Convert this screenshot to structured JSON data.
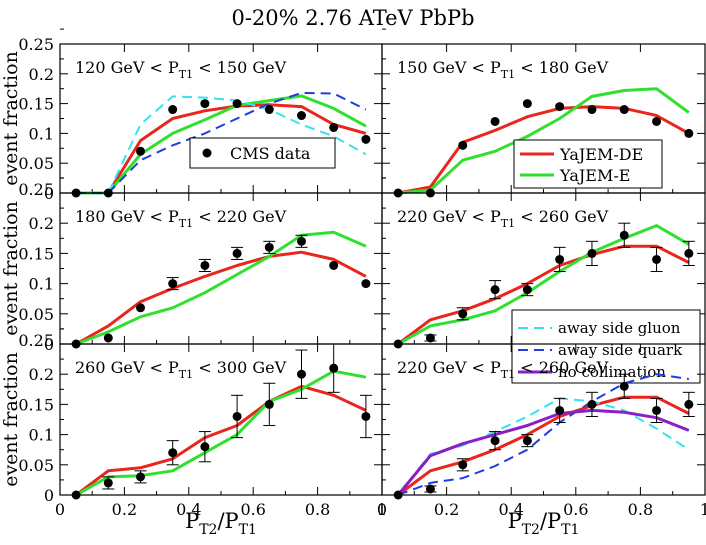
{
  "figure": {
    "title": "0-20% 2.76 ATeV PbPb",
    "ylabel": "event fraction",
    "xlabel_main": "P",
    "xlabel_sub_num": "T2",
    "xlabel_sep": "/P",
    "xlabel_sub_den": "T1"
  },
  "colors": {
    "data": "#000000",
    "de": "#e8261d",
    "e": "#2fe02f",
    "gluon": "#35e3ee",
    "quark": "#1f3de0",
    "nocoll": "#8a1ec9"
  },
  "legends": {
    "cms": "CMS data",
    "de": "YaJEM-DE",
    "e": "YaJEM-E",
    "gluon": "away side gluon",
    "quark": "away side quark",
    "nocoll": "no collimation"
  },
  "chart_data": [
    {
      "type": "line",
      "id": "p1",
      "title_pre": "120 GeV < P",
      "title_sub": "T1",
      "title_post": " < 150 GeV",
      "xlim": [
        0,
        1
      ],
      "ylim": [
        0,
        0.25
      ],
      "yticks": [
        "0",
        "0.05",
        "0.1",
        "0.15",
        "0.2",
        "0.25"
      ],
      "xticks": [],
      "cms": {
        "x": [
          0.05,
          0.15,
          0.25,
          0.35,
          0.45,
          0.55,
          0.65,
          0.75,
          0.85,
          0.95
        ],
        "y": [
          0,
          0,
          0.07,
          0.14,
          0.15,
          0.15,
          0.14,
          0.13,
          0.11,
          0.09
        ],
        "err": [
          0,
          0,
          0,
          0,
          0,
          0,
          0,
          0,
          0,
          0
        ]
      },
      "series": [
        {
          "key": "de",
          "dash": false,
          "x": [
            0.05,
            0.15,
            0.25,
            0.35,
            0.45,
            0.55,
            0.65,
            0.75,
            0.85,
            0.95
          ],
          "y": [
            0,
            0,
            0.088,
            0.125,
            0.138,
            0.146,
            0.148,
            0.145,
            0.115,
            0.1
          ]
        },
        {
          "key": "e",
          "dash": false,
          "x": [
            0.05,
            0.15,
            0.25,
            0.35,
            0.45,
            0.55,
            0.65,
            0.75,
            0.85,
            0.95
          ],
          "y": [
            0,
            0,
            0.065,
            0.1,
            0.123,
            0.147,
            0.155,
            0.163,
            0.142,
            0.112
          ]
        },
        {
          "key": "gluon",
          "dash": true,
          "x": [
            0.05,
            0.15,
            0.25,
            0.35,
            0.45,
            0.55,
            0.65,
            0.75,
            0.85,
            0.95
          ],
          "y": [
            0,
            0,
            0.115,
            0.162,
            0.16,
            0.155,
            0.14,
            0.115,
            0.095,
            0.065
          ]
        },
        {
          "key": "quark",
          "dash": true,
          "x": [
            0.05,
            0.15,
            0.25,
            0.35,
            0.45,
            0.55,
            0.65,
            0.75,
            0.85,
            0.95
          ],
          "y": [
            0,
            0,
            0.055,
            0.08,
            0.1,
            0.125,
            0.15,
            0.168,
            0.167,
            0.14
          ]
        }
      ],
      "legend": {
        "type": "cms"
      }
    },
    {
      "type": "line",
      "id": "p2",
      "title_pre": "150 GeV < P",
      "title_sub": "T1",
      "title_post": " < 180 GeV",
      "xlim": [
        0,
        1
      ],
      "ylim": [
        0,
        0.25
      ],
      "yticks": [],
      "xticks": [],
      "cms": {
        "x": [
          0.05,
          0.15,
          0.25,
          0.35,
          0.45,
          0.55,
          0.65,
          0.75,
          0.85,
          0.95
        ],
        "y": [
          0,
          0,
          0.08,
          0.12,
          0.15,
          0.145,
          0.14,
          0.14,
          0.12,
          0.1
        ],
        "err": [
          0,
          0,
          0,
          0,
          0,
          0,
          0,
          0,
          0,
          0
        ]
      },
      "series": [
        {
          "key": "de",
          "dash": false,
          "x": [
            0.05,
            0.15,
            0.25,
            0.35,
            0.45,
            0.55,
            0.65,
            0.75,
            0.85,
            0.95
          ],
          "y": [
            0,
            0.01,
            0.085,
            0.105,
            0.128,
            0.142,
            0.145,
            0.142,
            0.13,
            0.1
          ]
        },
        {
          "key": "e",
          "dash": false,
          "x": [
            0.05,
            0.15,
            0.25,
            0.35,
            0.45,
            0.55,
            0.65,
            0.75,
            0.85,
            0.95
          ],
          "y": [
            0,
            0.005,
            0.055,
            0.07,
            0.095,
            0.125,
            0.162,
            0.172,
            0.175,
            0.135
          ]
        }
      ],
      "legend": {
        "type": "models"
      }
    },
    {
      "type": "line",
      "id": "p3",
      "title_pre": "180 GeV < P",
      "title_sub": "T1",
      "title_post": " < 220 GeV",
      "xlim": [
        0,
        1
      ],
      "ylim": [
        0,
        0.25
      ],
      "yticks": [
        "0",
        "0.05",
        "0.1",
        "0.15",
        "0.2",
        "0.25"
      ],
      "xticks": [],
      "cms": {
        "x": [
          0.05,
          0.15,
          0.25,
          0.35,
          0.45,
          0.55,
          0.65,
          0.75,
          0.85,
          0.95
        ],
        "y": [
          0,
          0.01,
          0.06,
          0.1,
          0.13,
          0.15,
          0.16,
          0.17,
          0.13,
          0.1
        ],
        "err": [
          0,
          0,
          0,
          0.01,
          0.01,
          0.01,
          0.01,
          0.01,
          0,
          0
        ]
      },
      "series": [
        {
          "key": "de",
          "dash": false,
          "x": [
            0.05,
            0.15,
            0.25,
            0.35,
            0.45,
            0.55,
            0.65,
            0.75,
            0.85,
            0.95
          ],
          "y": [
            0,
            0.03,
            0.07,
            0.092,
            0.112,
            0.13,
            0.145,
            0.152,
            0.14,
            0.112
          ]
        },
        {
          "key": "e",
          "dash": false,
          "x": [
            0.05,
            0.15,
            0.25,
            0.35,
            0.45,
            0.55,
            0.65,
            0.75,
            0.85,
            0.95
          ],
          "y": [
            0,
            0.02,
            0.045,
            0.06,
            0.085,
            0.115,
            0.145,
            0.18,
            0.185,
            0.162
          ]
        }
      ],
      "legend": {
        "type": "none"
      }
    },
    {
      "type": "line",
      "id": "p4",
      "title_pre": "220 GeV < P",
      "title_sub": "T1",
      "title_post": " < 260 GeV",
      "xlim": [
        0,
        1
      ],
      "ylim": [
        0,
        0.25
      ],
      "yticks": [],
      "xticks": [],
      "cms": {
        "x": [
          0.05,
          0.15,
          0.25,
          0.35,
          0.45,
          0.55,
          0.65,
          0.75,
          0.85,
          0.95
        ],
        "y": [
          0,
          0.01,
          0.05,
          0.09,
          0.09,
          0.14,
          0.15,
          0.18,
          0.14,
          0.15
        ],
        "err": [
          0,
          0.005,
          0.01,
          0.015,
          0.01,
          0.02,
          0.02,
          0.02,
          0.02,
          0.02
        ]
      },
      "series": [
        {
          "key": "de",
          "dash": false,
          "x": [
            0.05,
            0.15,
            0.25,
            0.35,
            0.45,
            0.55,
            0.65,
            0.75,
            0.85,
            0.95
          ],
          "y": [
            0,
            0.04,
            0.055,
            0.075,
            0.1,
            0.13,
            0.148,
            0.162,
            0.162,
            0.135
          ]
        },
        {
          "key": "e",
          "dash": false,
          "x": [
            0.05,
            0.15,
            0.25,
            0.35,
            0.45,
            0.55,
            0.65,
            0.75,
            0.85,
            0.95
          ],
          "y": [
            0,
            0.03,
            0.04,
            0.055,
            0.085,
            0.12,
            0.152,
            0.175,
            0.196,
            0.165
          ]
        }
      ],
      "legend": {
        "type": "variants"
      }
    },
    {
      "type": "line",
      "id": "p5",
      "title_pre": "260 GeV < P",
      "title_sub": "T1",
      "title_post": " < 300 GeV",
      "xlim": [
        0,
        1
      ],
      "ylim": [
        0,
        0.25
      ],
      "yticks": [
        "0",
        "0.05",
        "0.1",
        "0.15",
        "0.2",
        "0.25"
      ],
      "xticks": [
        "0",
        "0.2",
        "0.4",
        "0.6",
        "0.8",
        "1"
      ],
      "cms": {
        "x": [
          0.05,
          0.15,
          0.25,
          0.35,
          0.45,
          0.55,
          0.65,
          0.75,
          0.85,
          0.95
        ],
        "y": [
          0,
          0.02,
          0.03,
          0.07,
          0.08,
          0.13,
          0.15,
          0.2,
          0.21,
          0.13
        ],
        "err": [
          0,
          0.01,
          0.01,
          0.02,
          0.025,
          0.035,
          0.035,
          0.04,
          0.04,
          0.035
        ]
      },
      "series": [
        {
          "key": "de",
          "dash": false,
          "x": [
            0.05,
            0.15,
            0.25,
            0.35,
            0.45,
            0.55,
            0.65,
            0.75,
            0.85,
            0.95
          ],
          "y": [
            0,
            0.04,
            0.045,
            0.06,
            0.095,
            0.115,
            0.155,
            0.18,
            0.165,
            0.14
          ]
        },
        {
          "key": "e",
          "dash": false,
          "x": [
            0.05,
            0.15,
            0.25,
            0.35,
            0.45,
            0.55,
            0.65,
            0.75,
            0.85,
            0.95
          ],
          "y": [
            0,
            0.03,
            0.032,
            0.04,
            0.07,
            0.1,
            0.155,
            0.175,
            0.205,
            0.195
          ]
        }
      ],
      "legend": {
        "type": "none"
      }
    },
    {
      "type": "line",
      "id": "p6",
      "title_pre": "220 GeV < P",
      "title_sub": "T1",
      "title_post": " < 260 GeV",
      "xlim": [
        0,
        1
      ],
      "ylim": [
        0,
        0.25
      ],
      "yticks": [],
      "xticks": [
        "0",
        "0.2",
        "0.4",
        "0.6",
        "0.8",
        "1"
      ],
      "cms": {
        "x": [
          0.05,
          0.15,
          0.25,
          0.35,
          0.45,
          0.55,
          0.65,
          0.75,
          0.85,
          0.95
        ],
        "y": [
          0,
          0.01,
          0.05,
          0.09,
          0.09,
          0.14,
          0.15,
          0.18,
          0.14,
          0.15
        ],
        "err": [
          0,
          0.005,
          0.01,
          0.015,
          0.01,
          0.02,
          0.02,
          0.02,
          0.02,
          0.02
        ]
      },
      "series": [
        {
          "key": "de",
          "dash": false,
          "x": [
            0.05,
            0.15,
            0.25,
            0.35,
            0.45,
            0.55,
            0.65,
            0.75,
            0.85,
            0.95
          ],
          "y": [
            0,
            0.04,
            0.055,
            0.075,
            0.1,
            0.13,
            0.148,
            0.162,
            0.162,
            0.135
          ]
        },
        {
          "key": "gluon",
          "dash": true,
          "x": [
            0.05,
            0.15,
            0.25,
            0.35,
            0.45,
            0.55,
            0.65,
            0.75,
            0.85,
            0.95
          ],
          "y": [
            0,
            0.068,
            0.082,
            0.105,
            0.13,
            0.16,
            0.155,
            0.14,
            0.11,
            0.075
          ]
        },
        {
          "key": "quark",
          "dash": true,
          "x": [
            0.05,
            0.15,
            0.25,
            0.35,
            0.45,
            0.55,
            0.65,
            0.75,
            0.85,
            0.95
          ],
          "y": [
            0,
            0.02,
            0.028,
            0.048,
            0.075,
            0.12,
            0.155,
            0.185,
            0.2,
            0.192
          ]
        },
        {
          "key": "nocoll",
          "dash": false,
          "x": [
            0.05,
            0.15,
            0.25,
            0.35,
            0.45,
            0.55,
            0.65,
            0.75,
            0.85,
            0.95
          ],
          "y": [
            0,
            0.065,
            0.085,
            0.1,
            0.115,
            0.135,
            0.14,
            0.137,
            0.128,
            0.107
          ]
        }
      ],
      "legend": {
        "type": "none"
      }
    }
  ]
}
